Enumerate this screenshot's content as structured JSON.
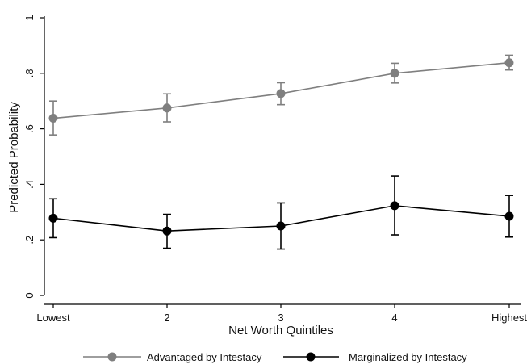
{
  "chart_data": {
    "type": "line",
    "title": "",
    "xlabel": "Net Worth Quintiles",
    "ylabel": "Predicted Probability",
    "categories": [
      "Lowest",
      "2",
      "3",
      "4",
      "Highest"
    ],
    "ylim": [
      0,
      1
    ],
    "yticks": [
      0,
      0.2,
      0.4,
      0.6,
      0.8,
      1
    ],
    "ytick_labels": [
      "0",
      ".2",
      ".4",
      ".6",
      ".8",
      "1"
    ],
    "grid": false,
    "legend_position": "bottom",
    "series": [
      {
        "name": "Advantaged by Intestacy",
        "color": "#7f7f7f",
        "values": [
          0.638,
          0.675,
          0.727,
          0.8,
          0.838
        ],
        "ci_low": [
          0.578,
          0.625,
          0.687,
          0.765,
          0.812
        ],
        "ci_high": [
          0.7,
          0.726,
          0.766,
          0.836,
          0.865
        ]
      },
      {
        "name": "Marginalized by Intestacy",
        "color": "#000000",
        "values": [
          0.278,
          0.232,
          0.25,
          0.323,
          0.285
        ],
        "ci_low": [
          0.208,
          0.17,
          0.167,
          0.218,
          0.21
        ],
        "ci_high": [
          0.348,
          0.292,
          0.333,
          0.43,
          0.36
        ]
      }
    ]
  }
}
